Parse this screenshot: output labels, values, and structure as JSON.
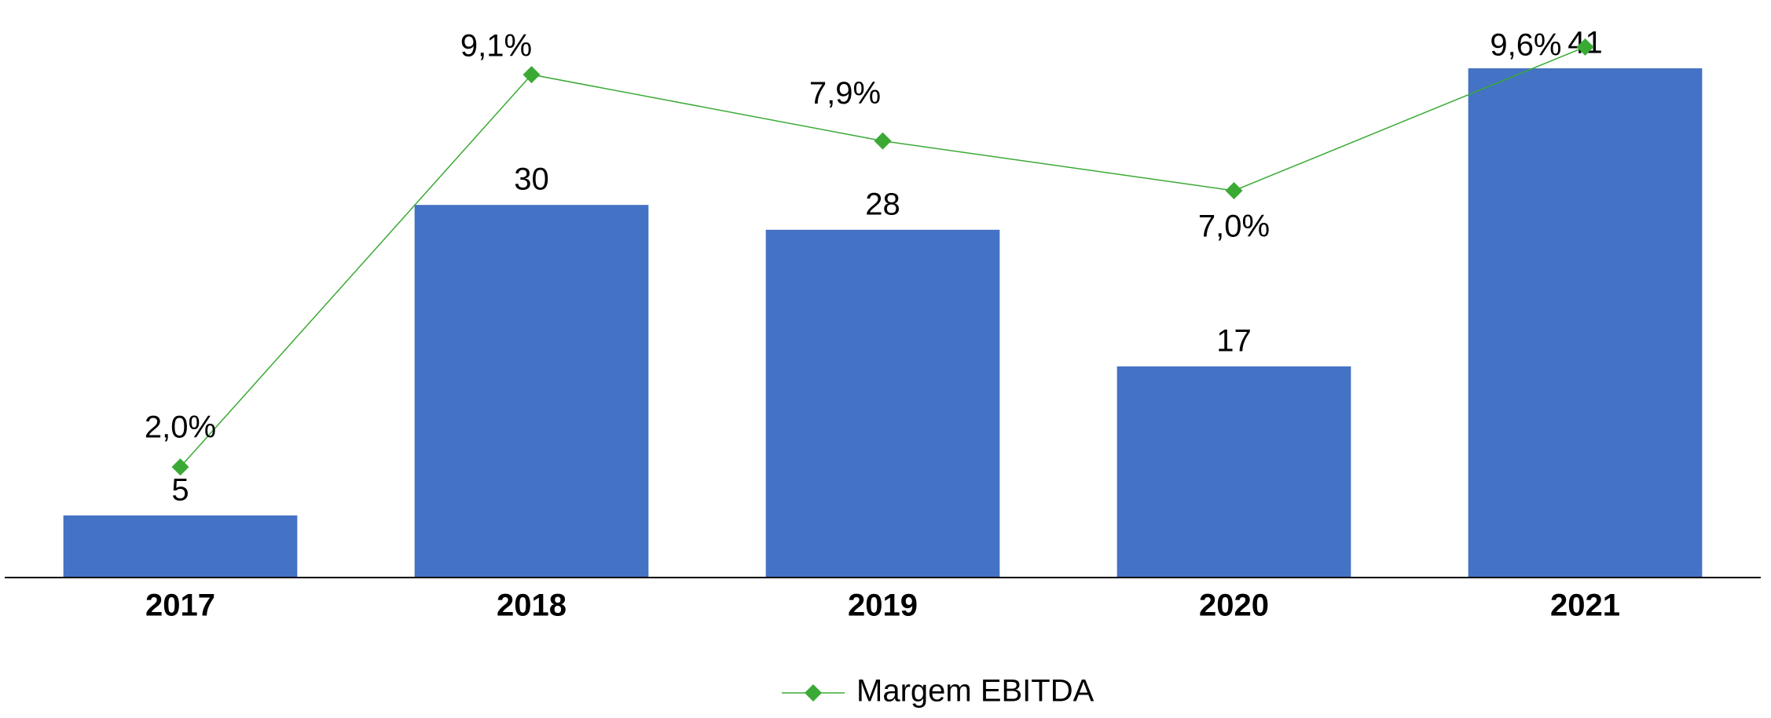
{
  "chart_data": {
    "type": "bar",
    "categories": [
      "2017",
      "2018",
      "2019",
      "2020",
      "2021"
    ],
    "series": [
      {
        "values": [
          5,
          30,
          28,
          17,
          41
        ],
        "color": "#4472c4"
      },
      {
        "name": "Margem EBITDA",
        "type": "line",
        "axis": "y2",
        "color": "#3aaa35",
        "values": [
          2.0,
          9.1,
          7.9,
          7.0,
          9.6
        ],
        "value_labels": [
          "2,0%",
          "9,1%",
          "7,9%",
          "7,0%",
          "9,6%"
        ]
      }
    ],
    "ylim": [
      0,
      46.5
    ],
    "y2lim": [
      0,
      10.45
    ],
    "legend": "bottom"
  }
}
